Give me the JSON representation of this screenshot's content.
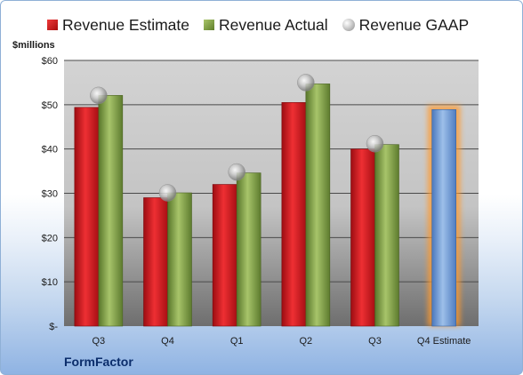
{
  "chart_data": {
    "type": "bar",
    "company": "FormFactor",
    "ylabel": "$millions",
    "ylim": [
      0,
      60
    ],
    "yticks": [
      {
        "value": 0,
        "label": "$-"
      },
      {
        "value": 10,
        "label": "$10"
      },
      {
        "value": 20,
        "label": "$20"
      },
      {
        "value": 30,
        "label": "$30"
      },
      {
        "value": 40,
        "label": "$40"
      },
      {
        "value": 50,
        "label": "$50"
      },
      {
        "value": 60,
        "label": "$60"
      }
    ],
    "categories": [
      "Q3",
      "Q4",
      "Q1",
      "Q2",
      "Q3",
      "Q4 Estimate"
    ],
    "series": [
      {
        "name": "Revenue Estimate",
        "color": "#c8161d",
        "values": [
          49.4,
          29.0,
          32.0,
          50.5,
          40.0,
          48.9
        ]
      },
      {
        "name": "Revenue Actual",
        "color": "#7a9a3d",
        "values": [
          52.1,
          30.1,
          34.6,
          54.7,
          41.0,
          null
        ]
      },
      {
        "name": "Revenue GAAP",
        "color": "#b4b4b4",
        "values": [
          52.1,
          30.1,
          34.8,
          55.0,
          41.2,
          null
        ]
      }
    ],
    "grid": true,
    "legend": "top"
  }
}
